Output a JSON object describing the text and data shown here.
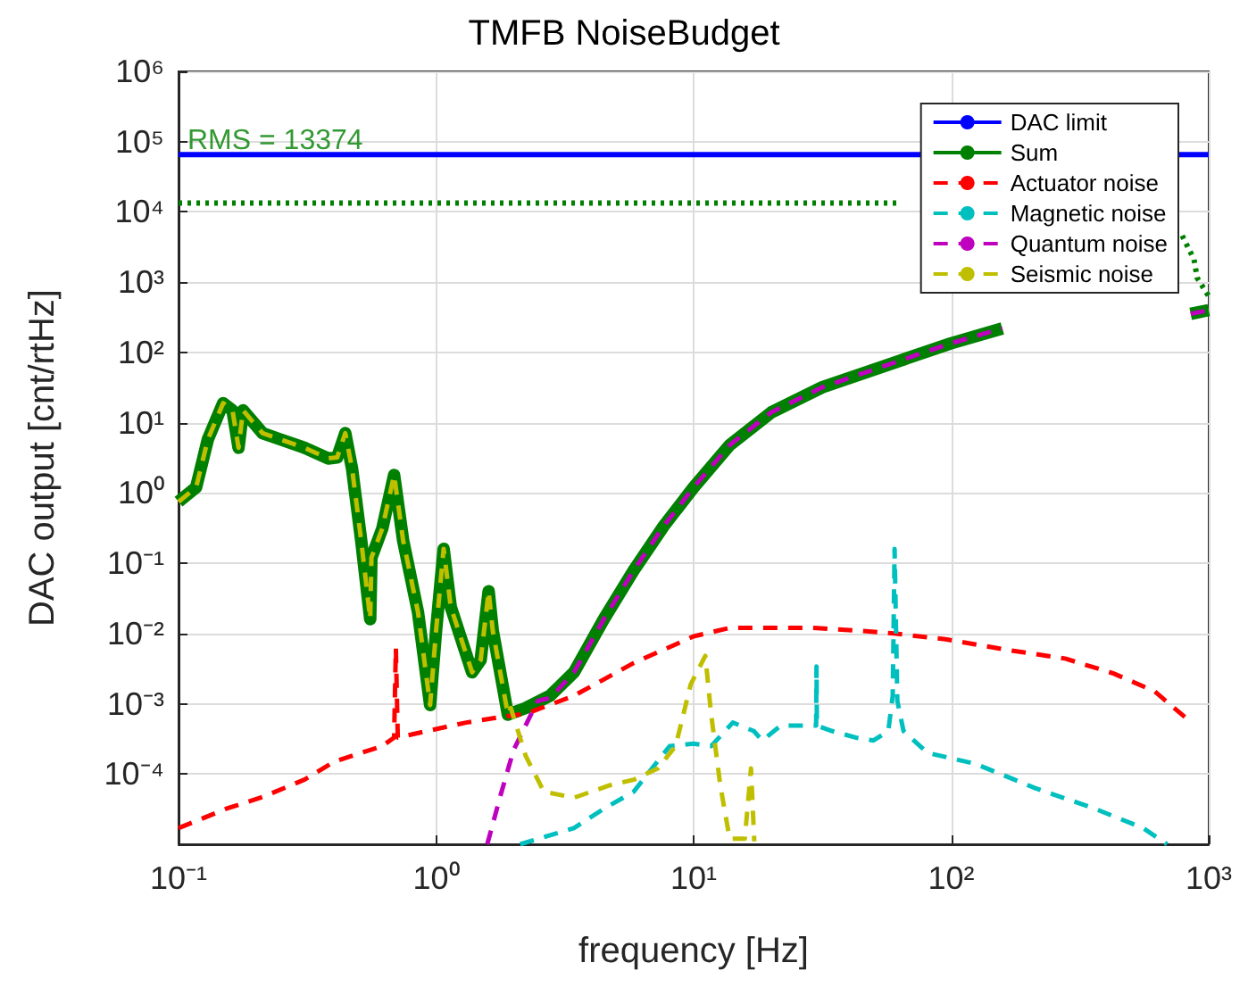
{
  "chart_data": {
    "type": "line",
    "title": "TMFB NoiseBudget",
    "xlabel": "frequency [Hz]",
    "ylabel": "DAC output [cnt/rtHz]",
    "log": "xy",
    "grid": true,
    "legend": "top right",
    "xlim": [
      0.1,
      1000
    ],
    "ylim": [
      1e-05,
      1000000
    ],
    "xticks": [
      {
        "value": 0.1,
        "label": "10⁻¹"
      },
      {
        "value": 1,
        "label": "10⁰"
      },
      {
        "value": 10,
        "label": "10¹"
      },
      {
        "value": 100,
        "label": "10²"
      },
      {
        "value": 1000,
        "label": "10³"
      }
    ],
    "yticks": [
      {
        "value": 1e-05,
        "label": null
      },
      {
        "value": 0.0001,
        "label": "10⁻⁴"
      },
      {
        "value": 0.001,
        "label": "10⁻³"
      },
      {
        "value": 0.01,
        "label": "10⁻²"
      },
      {
        "value": 0.1,
        "label": "10⁻¹"
      },
      {
        "value": 1,
        "label": "10⁰"
      },
      {
        "value": 10,
        "label": "10¹"
      },
      {
        "value": 100,
        "label": "10²"
      },
      {
        "value": 1000,
        "label": "10³"
      },
      {
        "value": 10000,
        "label": "10⁴"
      },
      {
        "value": 100000,
        "label": "10⁵"
      },
      {
        "value": 1000000,
        "label": "10⁶"
      }
    ],
    "annotations": [
      {
        "text": "RMS = 13374",
        "x": 0.1,
        "y": 13374
      }
    ],
    "series": [
      {
        "name": "DAC limit",
        "color": "#0000ff",
        "line_style": "solid",
        "x": [
          0.1,
          1000
        ],
        "values": [
          65536,
          65536
        ]
      },
      {
        "color": "#008000",
        "line_style": "dotted",
        "x": [
          0.1,
          63,
          400,
          789,
          877,
          902,
          1000
        ],
        "values": [
          13374,
          13374,
          null,
          4600,
          2100,
          1150,
          630
        ]
      },
      {
        "name": "Sum",
        "color": "#008000",
        "line_style": "solid",
        "x": [
          0.1,
          0.117,
          0.13,
          0.149,
          0.162,
          0.171,
          0.178,
          0.212,
          0.248,
          0.308,
          0.381,
          0.413,
          0.444,
          0.472,
          0.512,
          0.555,
          0.561,
          0.618,
          0.687,
          0.745,
          0.851,
          0.948,
          1.0,
          1.07,
          1.14,
          1.38,
          1.49,
          1.6,
          1.66,
          1.9,
          2.23,
          2.77,
          3.43,
          4.48,
          5.85,
          7.66,
          10,
          13.8,
          20,
          31.6,
          63,
          100,
          158,
          400,
          851,
          1000
        ],
        "values": [
          0.75,
          1.2,
          5.8,
          19,
          15,
          4.4,
          15,
          7.1,
          5.8,
          4.4,
          3.1,
          3.2,
          7.1,
          2.2,
          0.21,
          0.016,
          0.12,
          0.31,
          1.8,
          0.21,
          0.02,
          0.00096,
          0.011,
          0.16,
          0.024,
          0.0028,
          0.0042,
          0.04,
          0.011,
          0.0007,
          0.00087,
          0.0013,
          0.0028,
          0.016,
          0.079,
          0.34,
          1.2,
          4.8,
          14,
          32,
          76,
          135,
          220,
          null,
          355,
          400
        ]
      },
      {
        "name": "Actuator noise",
        "color": "#ff0000",
        "line_style": "dashed",
        "x": [
          0.1,
          0.153,
          0.212,
          0.308,
          0.403,
          0.618,
          0.687,
          0.698,
          0.71,
          0.897,
          1.31,
          1.8,
          2.23,
          3.43,
          5.85,
          10,
          13.8,
          19,
          29,
          43,
          60,
          95,
          162,
          277,
          427,
          617,
          832
        ],
        "values": [
          1.7e-05,
          3.2e-05,
          4.7e-05,
          8.3e-05,
          0.00015,
          0.00025,
          0.00033,
          0.0062,
          0.00033,
          0.0004,
          0.00054,
          0.00065,
          0.00072,
          0.0013,
          0.0038,
          0.0091,
          0.012,
          0.012,
          0.012,
          0.011,
          0.01,
          0.0083,
          0.0059,
          0.0044,
          0.0027,
          0.0015,
          0.00059
        ]
      },
      {
        "name": "Magnetic noise",
        "color": "#00bfbf",
        "line_style": "dashed",
        "x": [
          2.12,
          3.43,
          4.48,
          5.85,
          8.07,
          10,
          11.7,
          14.2,
          17.1,
          18.5,
          21.8,
          27,
          29.9,
          30,
          30.1,
          34.4,
          42.6,
          49.9,
          57,
          59.3,
          60.3,
          61.8,
          65.3,
          81,
          124,
          212,
          362,
          556,
          689
        ],
        "values": [
          1e-05,
          1.7e-05,
          3.2e-05,
          5.6e-05,
          0.00025,
          0.00027,
          0.00025,
          0.00054,
          0.00041,
          0.0003,
          0.00049,
          0.00049,
          0.00049,
          0.0034,
          0.00049,
          0.00041,
          0.00033,
          0.0003,
          0.00041,
          0.0013,
          0.16,
          0.0011,
          0.00041,
          0.0002,
          0.00014,
          6.3e-05,
          3.2e-05,
          1.7e-05,
          1e-05
        ]
      },
      {
        "name": "Quantum noise",
        "color": "#bf00bf",
        "line_style": "dashed",
        "x": [
          1.58,
          1.78,
          2.0,
          2.48,
          2.77,
          3.43,
          4.48,
          5.85,
          7.66,
          10,
          13.8,
          20,
          31.6,
          63,
          100,
          158,
          400,
          851,
          1000
        ],
        "values": [
          1e-05,
          5e-05,
          0.00022,
          0.0011,
          0.0012,
          0.0028,
          0.016,
          0.079,
          0.34,
          1.2,
          4.8,
          14,
          32,
          76,
          135,
          220,
          null,
          355,
          400
        ]
      },
      {
        "name": "Seismic noise",
        "color": "#bfbf00",
        "line_style": "dashed",
        "x": [
          0.1,
          0.117,
          0.13,
          0.149,
          0.162,
          0.171,
          0.178,
          0.212,
          0.248,
          0.308,
          0.381,
          0.413,
          0.444,
          0.472,
          0.512,
          0.555,
          0.561,
          0.618,
          0.687,
          0.745,
          0.851,
          0.948,
          1.0,
          1.07,
          1.14,
          1.38,
          1.49,
          1.6,
          1.66,
          1.9,
          1.95,
          2.23,
          2.62,
          3.43,
          4.72,
          5.85,
          7.26,
          8.51,
          9.75,
          11.1,
          11.7,
          12.7,
          13.8,
          15.8,
          16.7,
          17.2
        ],
        "values": [
          0.75,
          1.2,
          5.8,
          19,
          15,
          4.4,
          15,
          7.1,
          5.8,
          4.4,
          3.1,
          3.2,
          7.1,
          2.2,
          0.21,
          0.016,
          0.12,
          0.31,
          1.8,
          0.21,
          0.02,
          0.00096,
          0.011,
          0.16,
          0.024,
          0.0028,
          0.0042,
          0.04,
          0.011,
          0.0007,
          0.00087,
          0.00018,
          5.6e-05,
          4.6e-05,
          6.9e-05,
          8.3e-05,
          0.00012,
          0.00025,
          0.0019,
          0.0048,
          0.0007,
          6.8e-05,
          1.2e-05,
          1.2e-05,
          0.00012,
          1.1e-05
        ]
      }
    ]
  }
}
